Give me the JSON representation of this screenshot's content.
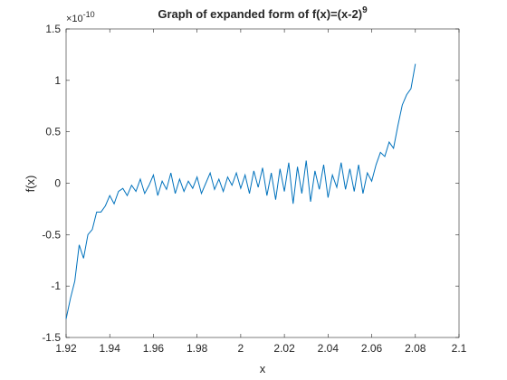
{
  "chart_data": {
    "type": "line",
    "title": "Graph of expanded form of f(x)=(x-2)",
    "title_exponent": "9",
    "xlabel": "x",
    "ylabel": "f(x)",
    "y_multiplier": {
      "base": "×10",
      "exponent": "-10"
    },
    "color": "#0072bd",
    "xlim": [
      1.92,
      2.1
    ],
    "xticks": [
      1.92,
      1.94,
      1.96,
      1.98,
      2,
      2.02,
      2.04,
      2.06,
      2.08,
      2.1
    ],
    "ylim": [
      -1.5,
      1.5
    ],
    "yticks": [
      -1.5,
      -1,
      -0.5,
      0,
      0.5,
      1,
      1.5
    ],
    "x": [
      1.92,
      1.922,
      1.924,
      1.926,
      1.928,
      1.93,
      1.932,
      1.934,
      1.936,
      1.938,
      1.94,
      1.942,
      1.944,
      1.946,
      1.948,
      1.95,
      1.952,
      1.954,
      1.956,
      1.958,
      1.96,
      1.962,
      1.964,
      1.966,
      1.968,
      1.97,
      1.972,
      1.974,
      1.976,
      1.978,
      1.98,
      1.982,
      1.984,
      1.986,
      1.988,
      1.99,
      1.992,
      1.994,
      1.996,
      1.998,
      2.0,
      2.002,
      2.004,
      2.006,
      2.008,
      2.01,
      2.012,
      2.014,
      2.016,
      2.018,
      2.02,
      2.022,
      2.024,
      2.026,
      2.028,
      2.03,
      2.032,
      2.034,
      2.036,
      2.038,
      2.04,
      2.042,
      2.044,
      2.046,
      2.048,
      2.05,
      2.052,
      2.054,
      2.056,
      2.058,
      2.06,
      2.062,
      2.064,
      2.066,
      2.068,
      2.07,
      2.072,
      2.074,
      2.076,
      2.078,
      2.08
    ],
    "values": [
      -1.32,
      -1.12,
      -0.95,
      -0.6,
      -0.73,
      -0.5,
      -0.45,
      -0.28,
      -0.28,
      -0.22,
      -0.12,
      -0.2,
      -0.08,
      -0.05,
      -0.12,
      -0.02,
      -0.08,
      0.04,
      -0.1,
      -0.02,
      0.08,
      -0.12,
      0.02,
      -0.06,
      0.1,
      -0.1,
      0.04,
      -0.08,
      0.02,
      -0.05,
      0.06,
      -0.1,
      0.0,
      0.1,
      -0.06,
      0.04,
      -0.08,
      0.06,
      -0.02,
      0.1,
      -0.05,
      0.08,
      -0.1,
      0.12,
      -0.04,
      0.15,
      -0.12,
      0.1,
      -0.16,
      0.14,
      -0.08,
      0.2,
      -0.2,
      0.16,
      -0.1,
      0.22,
      -0.18,
      0.12,
      -0.06,
      0.18,
      -0.14,
      0.08,
      -0.04,
      0.2,
      -0.06,
      0.14,
      -0.08,
      0.18,
      -0.1,
      0.1,
      0.02,
      0.18,
      0.3,
      0.26,
      0.4,
      0.34,
      0.56,
      0.76,
      0.86,
      0.92,
      1.16
    ]
  }
}
